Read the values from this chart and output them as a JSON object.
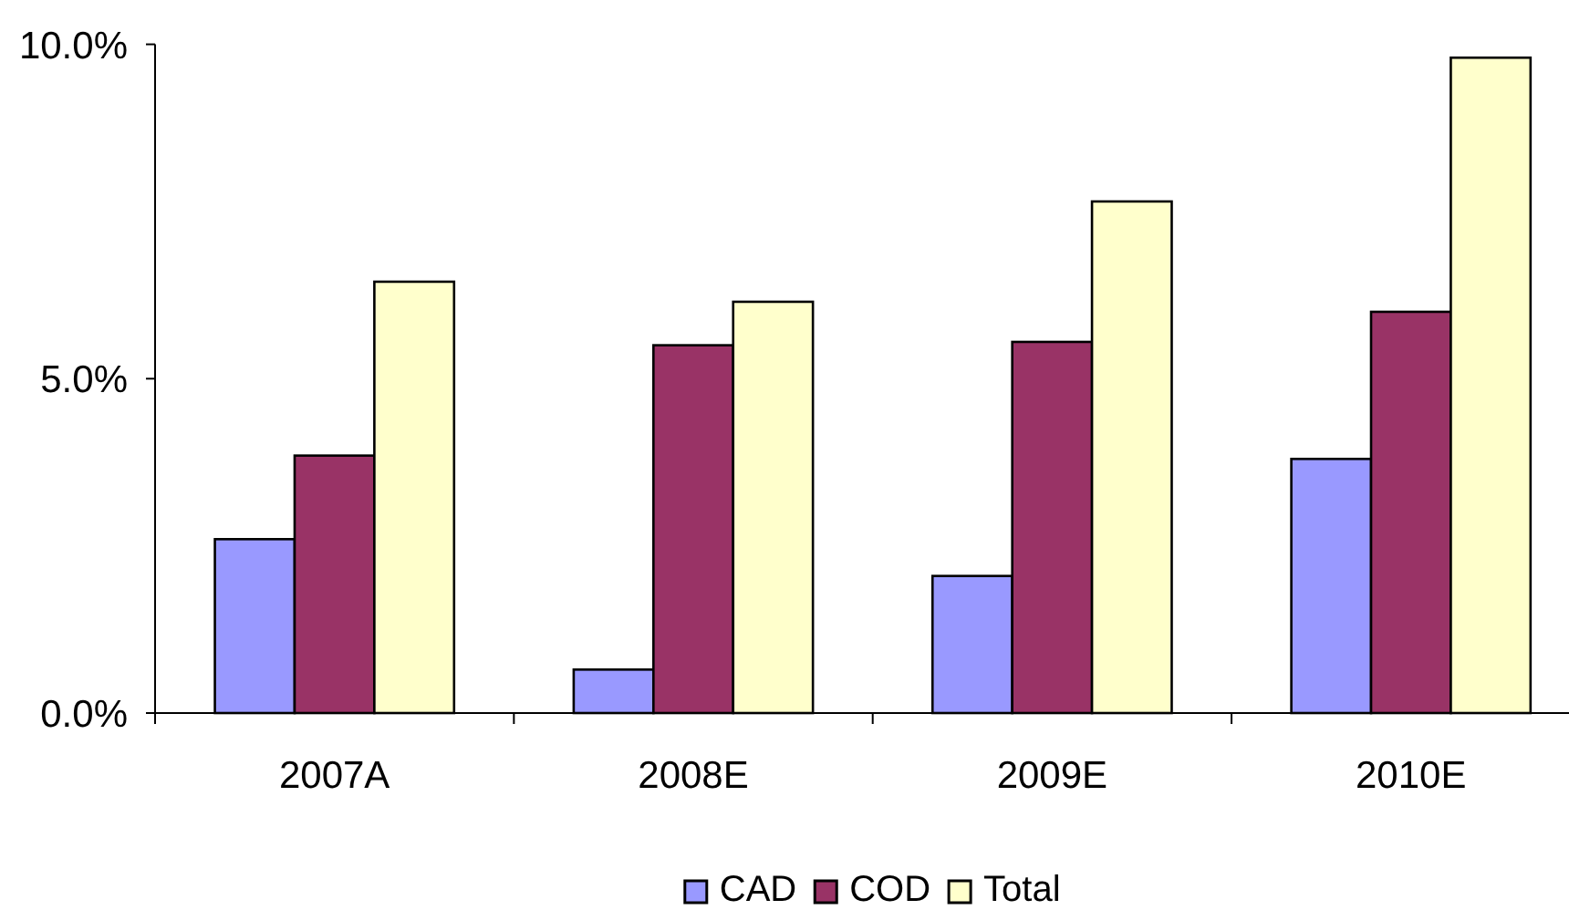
{
  "chart_data": {
    "type": "bar",
    "categories": [
      "2007A",
      "2008E",
      "2009E",
      "2010E"
    ],
    "series": [
      {
        "name": "CAD",
        "color": "#9999ff",
        "values": [
          2.6,
          0.65,
          2.05,
          3.8
        ]
      },
      {
        "name": "COD",
        "color": "#993366",
        "values": [
          3.85,
          5.5,
          5.55,
          6.0
        ]
      },
      {
        "name": "Total",
        "color": "#ffffcc",
        "values": [
          6.45,
          6.15,
          7.65,
          9.8
        ]
      }
    ],
    "ylim": [
      0,
      10
    ],
    "yticks": [
      {
        "value": 0,
        "label": "0.0%"
      },
      {
        "value": 5,
        "label": "5.0%"
      },
      {
        "value": 10,
        "label": "10.0%"
      }
    ],
    "legend": "bottom"
  }
}
